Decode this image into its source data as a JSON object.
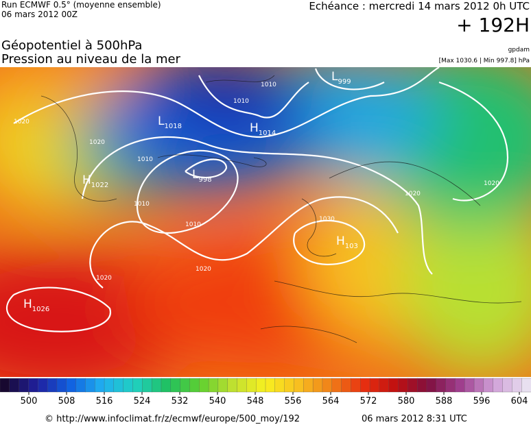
{
  "header": {
    "run": "Run ECMWF 0.5° (moyenne ensemble)",
    "date": "06 mars 2012 00Z",
    "echeance": "Echéance : mercredi 14 mars 2012 0h UTC",
    "horizon": "+ 192H",
    "title1": "Géopotentiel à 500hPa",
    "title2": "Pression au niveau de la mer",
    "source": "gpdam",
    "range": "[Max 1030.6 | Min 997.8] hPa"
  },
  "map": {
    "centers": [
      {
        "letter": "L",
        "value": "999"
      },
      {
        "letter": "L",
        "value": "1018"
      },
      {
        "letter": "H",
        "value": "1014"
      },
      {
        "letter": "L",
        "value": "998"
      },
      {
        "letter": "H",
        "value": "1022"
      },
      {
        "letter": "H",
        "value": "103"
      },
      {
        "letter": "H",
        "value": "1026"
      }
    ],
    "isobar_labels": [
      "1010",
      "1010",
      "1020",
      "1010",
      "1010",
      "1020",
      "1030",
      "1020",
      "1020",
      "1020",
      "1020",
      "1010"
    ]
  },
  "colorbar": {
    "labels": [
      500,
      508,
      516,
      524,
      532,
      540,
      548,
      556,
      564,
      572,
      580,
      588,
      596,
      604
    ]
  },
  "footer": {
    "url": "© http://www.infoclimat.fr/z/ecmwf/europe/500_moy/192",
    "generated": "06 mars 2012  8:31 UTC"
  }
}
